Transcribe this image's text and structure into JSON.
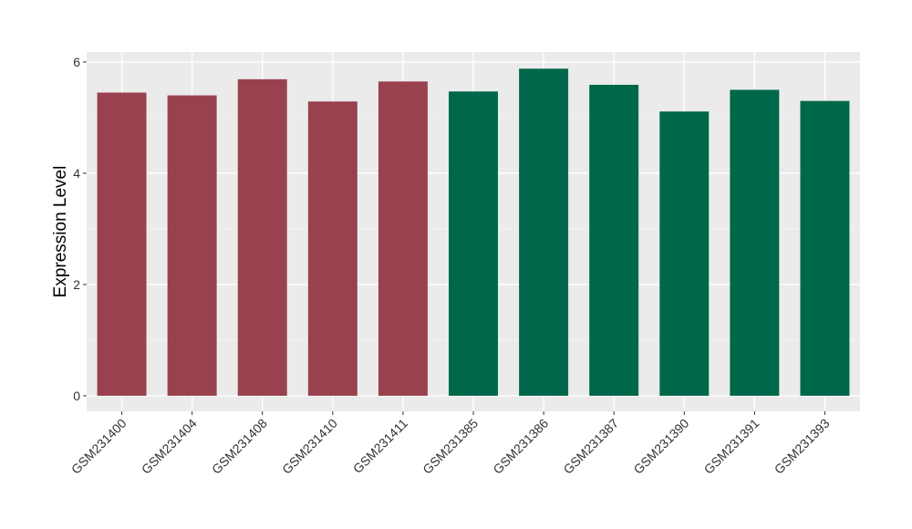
{
  "chart_data": {
    "type": "bar",
    "title": "",
    "xlabel": "",
    "ylabel": "Expression Level",
    "ylim": [
      -0.28,
      6.18
    ],
    "yticks": [
      0,
      2,
      4,
      6
    ],
    "grid": true,
    "legend": "none",
    "panel_background": "#ebebeb",
    "categories": [
      "GSM231400",
      "GSM231404",
      "GSM231408",
      "GSM231410",
      "GSM231411",
      "GSM231385",
      "GSM231386",
      "GSM231387",
      "GSM231390",
      "GSM231391",
      "GSM231393"
    ],
    "values": [
      5.45,
      5.4,
      5.69,
      5.29,
      5.65,
      5.47,
      5.88,
      5.59,
      5.11,
      5.5,
      5.3
    ],
    "colors": [
      "#99414f",
      "#99414f",
      "#99414f",
      "#99414f",
      "#99414f",
      "#00684a",
      "#00684a",
      "#00684a",
      "#00684a",
      "#00684a",
      "#00684a"
    ]
  }
}
